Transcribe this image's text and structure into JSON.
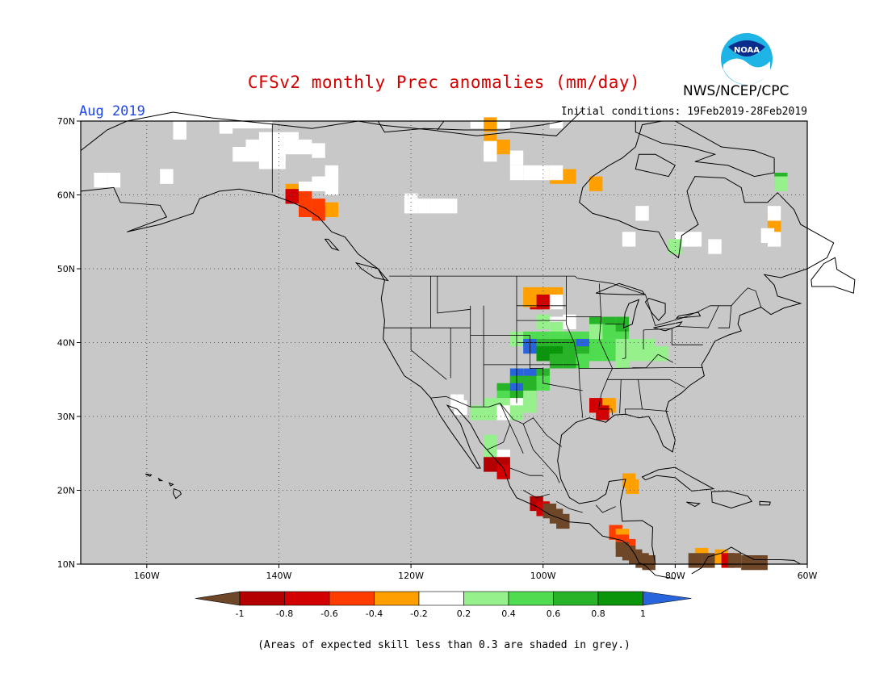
{
  "header": {
    "title": "CFSv2 monthly Prec anomalies (mm/day)",
    "agency": "NWS/NCEP/CPC",
    "logo_text": "NOAA",
    "period": "Aug 2019",
    "initial_conditions": "Initial conditions: 19Feb2019-28Feb2019"
  },
  "map": {
    "lat_labels": [
      "70N",
      "60N",
      "50N",
      "40N",
      "30N",
      "20N",
      "10N"
    ],
    "lon_labels": [
      "160W",
      "140W",
      "120W",
      "100W",
      "80W",
      "60W"
    ],
    "background_color": "#c8c8c8"
  },
  "legend": {
    "tick_labels": [
      "-1",
      "-0.8",
      "-0.6",
      "-0.4",
      "-0.2",
      "0.2",
      "0.4",
      "0.6",
      "0.8",
      "1"
    ],
    "colors": [
      "#6e4628",
      "#b40000",
      "#d20000",
      "#ff3c00",
      "#ffa000",
      "#ffffff",
      "#96f08c",
      "#50dc50",
      "#28b428",
      "#0a960a",
      "#2864dc"
    ]
  },
  "footnote": "(Areas of expected skill less than 0.3 are shaded in grey.)"
}
